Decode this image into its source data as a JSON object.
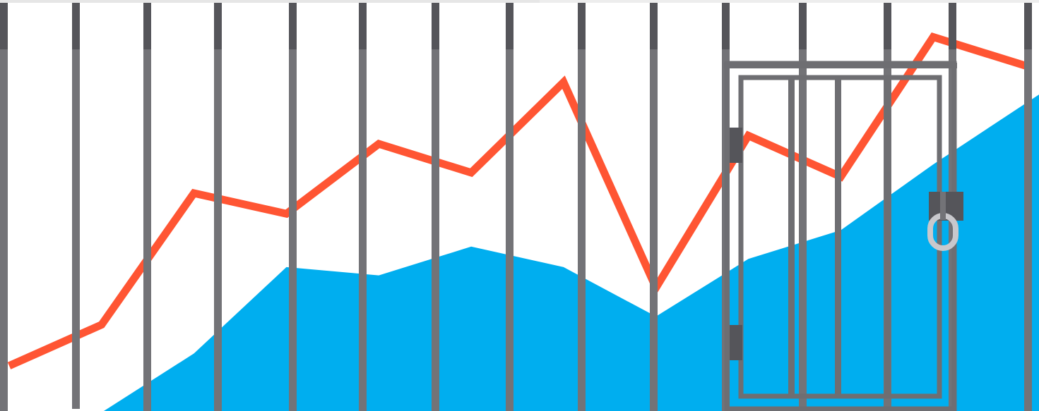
{
  "colors": {
    "background": "#ffffff",
    "area_fill": "#00aeef",
    "line": "#ff5533",
    "bar": "#737377",
    "bar_cap": "#55555a",
    "gate": "#6e6e72",
    "lock_ring": "#c8c8cc"
  },
  "icons": [
    "prison-bars-icon",
    "cell-gate-icon",
    "gate-hinge-icon",
    "padlock-icon"
  ],
  "chart_data": {
    "type": "area",
    "title": "",
    "xlabel": "",
    "ylabel": "",
    "grid": false,
    "legend": "none",
    "ylim": [
      0,
      100
    ],
    "series": [
      {
        "type": "line",
        "x": [
          0,
          1,
          2,
          3,
          4,
          5,
          6,
          7,
          8,
          9,
          10,
          11
        ],
        "values": [
          11,
          21,
          53,
          48,
          65,
          58,
          80,
          30,
          67,
          57,
          91,
          84
        ]
      },
      {
        "type": "area",
        "x": [
          1,
          2,
          3,
          4,
          5,
          6,
          7,
          8,
          9,
          10,
          11
        ],
        "values": [
          0,
          14,
          35,
          33,
          40,
          35,
          23,
          37,
          44,
          60,
          77
        ]
      }
    ]
  }
}
